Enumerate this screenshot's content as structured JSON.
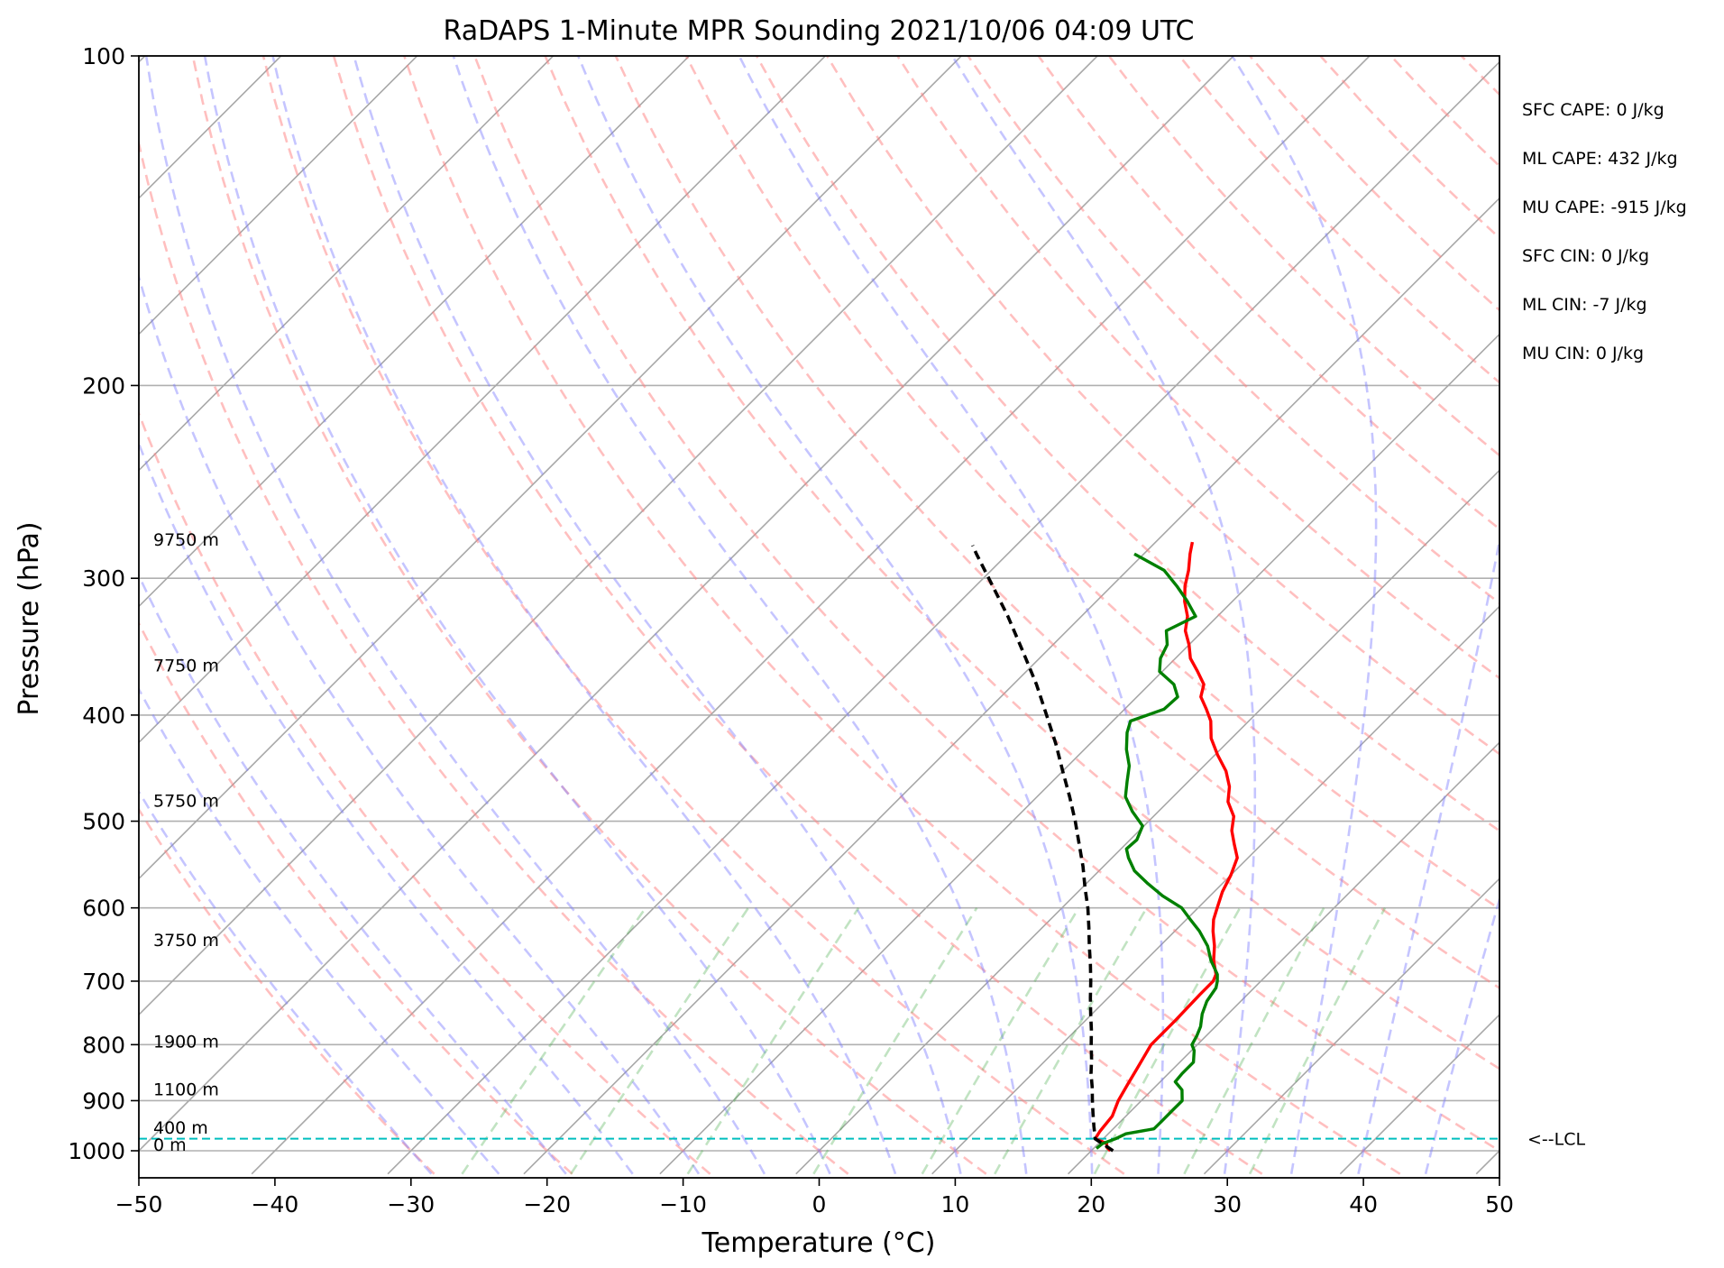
{
  "chart_data": {
    "type": "skew-t",
    "title": "RaDAPS 1-Minute MPR Sounding 2021/10/06 04:09 UTC",
    "xlabel": "Temperature (°C)",
    "ylabel": "Pressure (hPa)",
    "xlim": [
      -50,
      50
    ],
    "ylim": [
      1050,
      100
    ],
    "y_scale": "log",
    "x_ticks": [
      "−50",
      "−40",
      "−30",
      "−20",
      "−10",
      "0",
      "10",
      "20",
      "30",
      "40",
      "50"
    ],
    "x_tick_values": [
      -50,
      -40,
      -30,
      -20,
      -10,
      0,
      10,
      20,
      30,
      40,
      50
    ],
    "y_ticks": [
      "100",
      "200",
      "300",
      "400",
      "500",
      "600",
      "700",
      "800",
      "900",
      "1000"
    ],
    "y_tick_values": [
      100,
      200,
      300,
      400,
      500,
      600,
      700,
      800,
      900,
      1000
    ],
    "grid": true,
    "height_labels": [
      {
        "text": "9750 m",
        "p": 280
      },
      {
        "text": "7750 m",
        "p": 365
      },
      {
        "text": "5750 m",
        "p": 485
      },
      {
        "text": "3750 m",
        "p": 650
      },
      {
        "text": "1900 m",
        "p": 805
      },
      {
        "text": "1100 m",
        "p": 890
      },
      {
        "text": "400 m",
        "p": 965
      },
      {
        "text": "0 m",
        "p": 1000
      }
    ],
    "stats": [
      "SFC CAPE: 0 J/kg",
      "ML CAPE: 432 J/kg",
      "MU CAPE: -915 J/kg",
      "SFC CIN: 0 J/kg",
      "ML CIN: -7 J/kg",
      "MU CIN: 0 J/kg"
    ],
    "lcl": {
      "label": "<--LCL",
      "p": 975
    },
    "series": [
      {
        "color": "#ff0000",
        "kind": "temperature",
        "points": [
          [
            1000,
            21.4
          ],
          [
            993,
            20.9
          ],
          [
            985,
            20.6
          ],
          [
            975,
            19.4
          ],
          [
            960,
            19.2
          ],
          [
            930,
            19.0
          ],
          [
            900,
            18.3
          ],
          [
            870,
            17.8
          ],
          [
            840,
            17.3
          ],
          [
            800,
            16.6
          ],
          [
            760,
            16.6
          ],
          [
            720,
            16.5
          ],
          [
            700,
            16.5
          ],
          [
            690,
            16.2
          ],
          [
            670,
            15.0
          ],
          [
            650,
            14.0
          ],
          [
            630,
            12.8
          ],
          [
            615,
            12.0
          ],
          [
            600,
            11.4
          ],
          [
            580,
            10.6
          ],
          [
            560,
            10.0
          ],
          [
            540,
            9.2
          ],
          [
            525,
            8.0
          ],
          [
            510,
            6.8
          ],
          [
            495,
            5.9
          ],
          [
            480,
            4.4
          ],
          [
            465,
            3.4
          ],
          [
            450,
            2.0
          ],
          [
            435,
            0.2
          ],
          [
            420,
            -1.5
          ],
          [
            405,
            -2.8
          ],
          [
            395,
            -4.0
          ],
          [
            385,
            -5.3
          ],
          [
            375,
            -6.0
          ],
          [
            365,
            -7.4
          ],
          [
            355,
            -8.9
          ],
          [
            345,
            -10.0
          ],
          [
            335,
            -11.3
          ],
          [
            325,
            -12.2
          ],
          [
            315,
            -13.5
          ],
          [
            305,
            -14.6
          ],
          [
            295,
            -15.5
          ],
          [
            285,
            -16.6
          ],
          [
            278,
            -17.3
          ]
        ]
      },
      {
        "color": "#008000",
        "kind": "dewpoint",
        "points": [
          [
            995,
            20.2
          ],
          [
            985,
            20.3
          ],
          [
            975,
            20.9
          ],
          [
            965,
            21.3
          ],
          [
            955,
            23.0
          ],
          [
            940,
            23.0
          ],
          [
            920,
            23.0
          ],
          [
            900,
            23.0
          ],
          [
            880,
            22.2
          ],
          [
            865,
            21.1
          ],
          [
            850,
            21.0
          ],
          [
            830,
            21.0
          ],
          [
            810,
            20.2
          ],
          [
            800,
            19.6
          ],
          [
            785,
            19.3
          ],
          [
            770,
            18.9
          ],
          [
            750,
            18.1
          ],
          [
            730,
            17.5
          ],
          [
            710,
            17.2
          ],
          [
            700,
            16.8
          ],
          [
            690,
            16.3
          ],
          [
            670,
            14.8
          ],
          [
            650,
            13.5
          ],
          [
            630,
            11.8
          ],
          [
            615,
            10.3
          ],
          [
            600,
            8.8
          ],
          [
            585,
            6.5
          ],
          [
            570,
            4.5
          ],
          [
            555,
            2.6
          ],
          [
            540,
            1.2
          ],
          [
            530,
            0.4
          ],
          [
            520,
            0.5
          ],
          [
            505,
            -0.1
          ],
          [
            490,
            -1.9
          ],
          [
            475,
            -3.5
          ],
          [
            460,
            -4.5
          ],
          [
            445,
            -5.5
          ],
          [
            430,
            -6.9
          ],
          [
            415,
            -8.1
          ],
          [
            405,
            -8.7
          ],
          [
            395,
            -7.1
          ],
          [
            385,
            -7.0
          ],
          [
            375,
            -8.2
          ],
          [
            365,
            -10.2
          ],
          [
            355,
            -11.1
          ],
          [
            345,
            -11.6
          ],
          [
            335,
            -12.7
          ],
          [
            325,
            -11.6
          ],
          [
            315,
            -13.3
          ],
          [
            305,
            -15.2
          ],
          [
            295,
            -17.3
          ],
          [
            285,
            -20.7
          ]
        ]
      },
      {
        "color": "#000000",
        "kind": "parcel",
        "dashed": true,
        "points": [
          [
            1000,
            21.6
          ],
          [
            975,
            19.4
          ],
          [
            950,
            18.4
          ],
          [
            925,
            17.4
          ],
          [
            900,
            16.4
          ],
          [
            875,
            15.4
          ],
          [
            850,
            14.3
          ],
          [
            825,
            13.3
          ],
          [
            800,
            12.2
          ],
          [
            775,
            11.1
          ],
          [
            750,
            9.9
          ],
          [
            725,
            8.7
          ],
          [
            700,
            7.5
          ],
          [
            675,
            6.2
          ],
          [
            650,
            4.8
          ],
          [
            625,
            3.4
          ],
          [
            600,
            1.9
          ],
          [
            575,
            0.2
          ],
          [
            550,
            -1.5
          ],
          [
            525,
            -3.4
          ],
          [
            500,
            -5.4
          ],
          [
            475,
            -7.6
          ],
          [
            450,
            -10.0
          ],
          [
            425,
            -12.5
          ],
          [
            400,
            -15.3
          ],
          [
            375,
            -18.3
          ],
          [
            350,
            -21.7
          ],
          [
            325,
            -25.4
          ],
          [
            300,
            -29.6
          ],
          [
            285,
            -32.3
          ],
          [
            280,
            -33.2
          ]
        ]
      }
    ]
  }
}
